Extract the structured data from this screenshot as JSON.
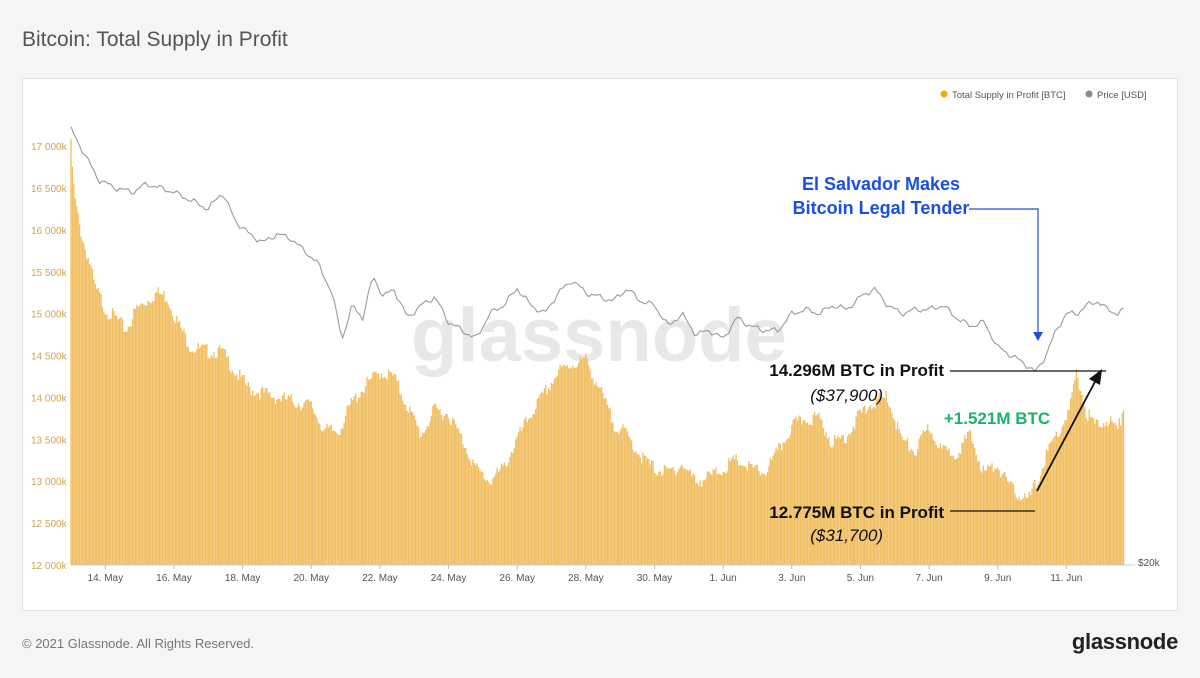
{
  "page": {
    "title": "Bitcoin: Total Supply in Profit",
    "copyright": "© 2021 Glassnode. All Rights Reserved.",
    "brand": "glassnode",
    "watermark": "glassnode"
  },
  "colors": {
    "supply": "#f0bd5f",
    "supply_legend": "#f7a600",
    "price": "#9a9a9a",
    "annotation_blue": "#1a4fe0",
    "annotation_green": "#1ab46a",
    "axis_text": "#d4a24a"
  },
  "legend": {
    "supply_label": "Total Supply in Profit [BTC]",
    "price_label": "Price [USD]"
  },
  "annotations": {
    "event_line1": "El Salvador Makes",
    "event_line2": "Bitcoin Legal Tender",
    "high_label": "14.296M BTC in Profit",
    "high_price": "($37,900)",
    "low_label": "12.775M BTC in Profit",
    "low_price": "($31,700)",
    "delta_label": "+1.521M BTC"
  },
  "chart_data": {
    "type": "bar",
    "x_tick_labels": [
      "14. May",
      "16. May",
      "18. May",
      "20. May",
      "22. May",
      "24. May",
      "26. May",
      "28. May",
      "30. May",
      "1. Jun",
      "3. Jun",
      "5. Jun",
      "7. Jun",
      "9. Jun",
      "11. Jun"
    ],
    "y_tick_labels": [
      "12 000k",
      "12 500k",
      "13 000k",
      "13 500k",
      "14 000k",
      "14 500k",
      "15 000k",
      "15 500k",
      "16 000k",
      "16 500k",
      "17 000k"
    ],
    "ylim": [
      12000000,
      17300000
    ],
    "right_axis_label": "$20k",
    "x_range_days": [
      0,
      31
    ],
    "series": [
      {
        "name": "Total Supply in Profit [BTC]",
        "type": "bar",
        "points": [
          [
            0.0,
            17000000
          ],
          [
            0.1,
            16400000
          ],
          [
            0.25,
            16050000
          ],
          [
            0.4,
            15800000
          ],
          [
            0.55,
            15600000
          ],
          [
            0.7,
            15300000
          ],
          [
            0.85,
            15200000
          ],
          [
            1.0,
            15050000
          ],
          [
            1.3,
            14950000
          ],
          [
            1.6,
            14800000
          ],
          [
            1.9,
            15050000
          ],
          [
            2.2,
            15150000
          ],
          [
            2.5,
            15250000
          ],
          [
            2.8,
            15200000
          ],
          [
            3.1,
            14900000
          ],
          [
            3.5,
            14600000
          ],
          [
            4.0,
            14550000
          ],
          [
            4.4,
            14550000
          ],
          [
            4.8,
            14300000
          ],
          [
            5.2,
            14100000
          ],
          [
            5.6,
            14050000
          ],
          [
            6.0,
            14000000
          ],
          [
            6.5,
            13950000
          ],
          [
            7.0,
            13900000
          ],
          [
            7.4,
            13600000
          ],
          [
            7.8,
            13600000
          ],
          [
            8.2,
            13950000
          ],
          [
            8.6,
            14150000
          ],
          [
            9.0,
            14300000
          ],
          [
            9.4,
            14250000
          ],
          [
            9.8,
            13900000
          ],
          [
            10.2,
            13550000
          ],
          [
            10.6,
            13850000
          ],
          [
            11.0,
            13800000
          ],
          [
            11.4,
            13500000
          ],
          [
            11.8,
            13150000
          ],
          [
            12.2,
            13000000
          ],
          [
            12.6,
            13150000
          ],
          [
            13.0,
            13500000
          ],
          [
            13.4,
            13800000
          ],
          [
            13.8,
            14050000
          ],
          [
            14.2,
            14300000
          ],
          [
            14.6,
            14400000
          ],
          [
            15.0,
            14450000
          ],
          [
            15.4,
            14100000
          ],
          [
            15.8,
            13700000
          ],
          [
            16.2,
            13550000
          ],
          [
            16.6,
            13300000
          ],
          [
            17.0,
            13150000
          ],
          [
            17.4,
            13100000
          ],
          [
            17.8,
            13200000
          ],
          [
            18.2,
            13000000
          ],
          [
            18.6,
            13050000
          ],
          [
            19.0,
            13150000
          ],
          [
            19.4,
            13250000
          ],
          [
            19.8,
            13150000
          ],
          [
            20.2,
            13100000
          ],
          [
            20.6,
            13350000
          ],
          [
            21.0,
            13650000
          ],
          [
            21.4,
            13750000
          ],
          [
            21.8,
            13750000
          ],
          [
            22.2,
            13450000
          ],
          [
            22.6,
            13550000
          ],
          [
            23.0,
            13800000
          ],
          [
            23.4,
            13950000
          ],
          [
            23.8,
            14000000
          ],
          [
            24.2,
            13500000
          ],
          [
            24.6,
            13350000
          ],
          [
            25.0,
            13650000
          ],
          [
            25.4,
            13350000
          ],
          [
            25.8,
            13350000
          ],
          [
            26.2,
            13550000
          ],
          [
            26.6,
            13100000
          ],
          [
            27.0,
            13200000
          ],
          [
            27.3,
            12950000
          ],
          [
            27.6,
            12850000
          ],
          [
            27.9,
            12775000
          ],
          [
            28.2,
            13050000
          ],
          [
            28.5,
            13400000
          ],
          [
            28.8,
            13600000
          ],
          [
            29.1,
            13850000
          ],
          [
            29.3,
            14296000
          ],
          [
            29.6,
            13800000
          ],
          [
            29.9,
            13650000
          ],
          [
            30.2,
            13750000
          ],
          [
            30.5,
            13600000
          ],
          [
            30.7,
            13950000
          ]
        ]
      },
      {
        "name": "Price [USD]",
        "type": "line",
        "points": [
          [
            0.0,
            17200000
          ],
          [
            0.4,
            16900000
          ],
          [
            0.8,
            16600000
          ],
          [
            1.3,
            16500000
          ],
          [
            1.8,
            16450000
          ],
          [
            2.2,
            16550000
          ],
          [
            2.6,
            16500000
          ],
          [
            3.0,
            16450000
          ],
          [
            3.5,
            16350000
          ],
          [
            4.0,
            16250000
          ],
          [
            4.4,
            16450000
          ],
          [
            4.8,
            16100000
          ],
          [
            5.2,
            15950000
          ],
          [
            5.6,
            15850000
          ],
          [
            6.0,
            15950000
          ],
          [
            6.4,
            15900000
          ],
          [
            6.8,
            15750000
          ],
          [
            7.2,
            15600000
          ],
          [
            7.6,
            15250000
          ],
          [
            7.9,
            14700000
          ],
          [
            8.2,
            15100000
          ],
          [
            8.5,
            14950000
          ],
          [
            8.8,
            15450000
          ],
          [
            9.1,
            15200000
          ],
          [
            9.4,
            15300000
          ],
          [
            9.8,
            14950000
          ],
          [
            10.2,
            15100000
          ],
          [
            10.6,
            15200000
          ],
          [
            11.0,
            14900000
          ],
          [
            11.4,
            14800000
          ],
          [
            11.8,
            14700000
          ],
          [
            12.2,
            15000000
          ],
          [
            12.6,
            15100000
          ],
          [
            13.0,
            15300000
          ],
          [
            13.4,
            15100000
          ],
          [
            13.8,
            15000000
          ],
          [
            14.2,
            15250000
          ],
          [
            14.6,
            15400000
          ],
          [
            15.0,
            15250000
          ],
          [
            15.4,
            15200000
          ],
          [
            15.8,
            15150000
          ],
          [
            16.2,
            15300000
          ],
          [
            16.6,
            15150000
          ],
          [
            17.0,
            15100000
          ],
          [
            17.4,
            14850000
          ],
          [
            17.8,
            15000000
          ],
          [
            18.2,
            14750000
          ],
          [
            18.6,
            14800000
          ],
          [
            19.0,
            14700000
          ],
          [
            19.4,
            14950000
          ],
          [
            19.8,
            14850000
          ],
          [
            20.2,
            14800000
          ],
          [
            20.6,
            14800000
          ],
          [
            21.0,
            15000000
          ],
          [
            21.4,
            15050000
          ],
          [
            21.8,
            15000000
          ],
          [
            22.2,
            15100000
          ],
          [
            22.6,
            15050000
          ],
          [
            23.0,
            15200000
          ],
          [
            23.4,
            15300000
          ],
          [
            23.8,
            15100000
          ],
          [
            24.2,
            15000000
          ],
          [
            24.6,
            15050000
          ],
          [
            25.0,
            15050000
          ],
          [
            25.4,
            15100000
          ],
          [
            25.8,
            14950000
          ],
          [
            26.2,
            14850000
          ],
          [
            26.6,
            14900000
          ],
          [
            27.0,
            14600000
          ],
          [
            27.4,
            14500000
          ],
          [
            27.8,
            14400000
          ],
          [
            28.1,
            14300000
          ],
          [
            28.4,
            14500000
          ],
          [
            28.7,
            14800000
          ],
          [
            29.0,
            15000000
          ],
          [
            29.3,
            15000000
          ],
          [
            29.6,
            15100000
          ],
          [
            29.9,
            15150000
          ],
          [
            30.2,
            15050000
          ],
          [
            30.5,
            15000000
          ],
          [
            30.7,
            15050000
          ]
        ]
      }
    ]
  }
}
